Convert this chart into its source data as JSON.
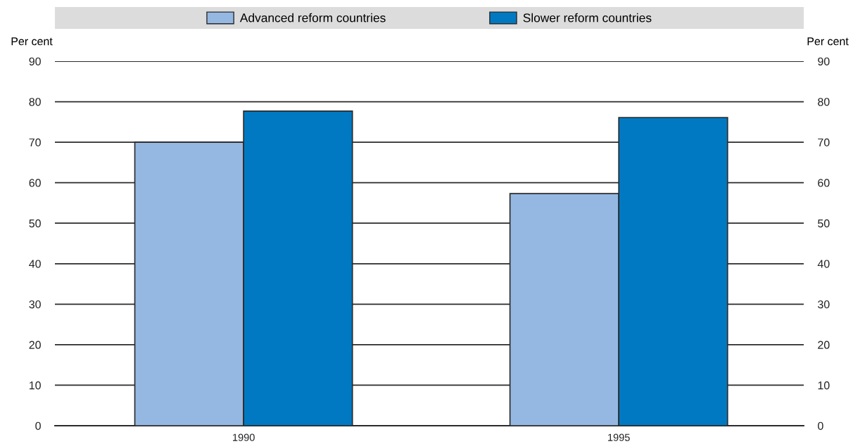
{
  "chart_data": {
    "type": "bar",
    "categories": [
      "1990",
      "1995"
    ],
    "series": [
      {
        "name": "Advanced reform countries",
        "color": "#95b8e2",
        "values": [
          70,
          57.3
        ]
      },
      {
        "name": "Slower reform countries",
        "color": "#0079c2",
        "values": [
          77.7,
          76.1
        ]
      }
    ],
    "ylabel": "Per cent",
    "y2label": "Per cent",
    "ylim": [
      0,
      90
    ],
    "yticks": [
      0,
      10,
      20,
      30,
      40,
      50,
      60,
      70,
      80,
      90
    ],
    "y2lim": [
      0,
      90
    ],
    "y2ticks": [
      0,
      10,
      20,
      30,
      40,
      50,
      60,
      70,
      80,
      90
    ],
    "grid": "y",
    "legend": "top"
  }
}
